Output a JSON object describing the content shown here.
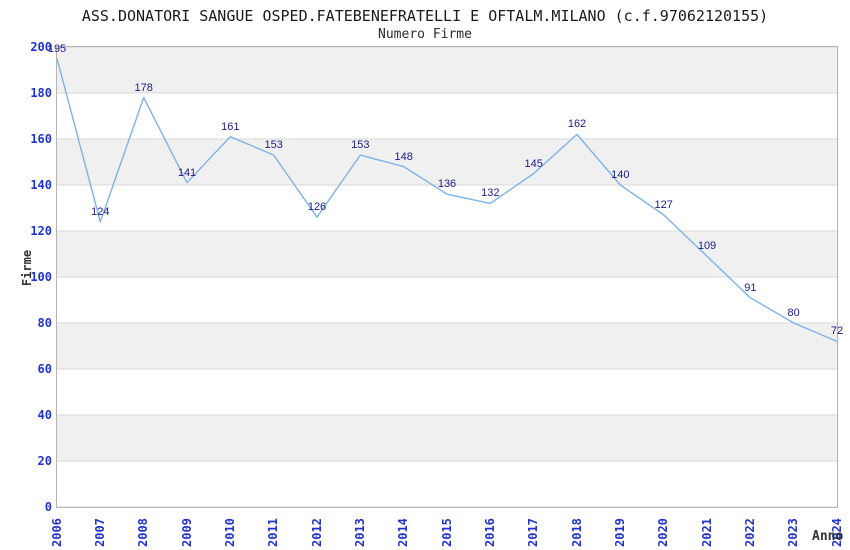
{
  "chart_data": {
    "type": "line",
    "title": "ASS.DONATORI SANGUE OSPED.FATEBENEFRATELLI E OFTALM.MILANO (c.f.97062120155)",
    "subtitle": "Numero Firme",
    "xlabel": "Anno",
    "ylabel": "Firme",
    "categories": [
      "2006",
      "2007",
      "2008",
      "2009",
      "2010",
      "2011",
      "2012",
      "2013",
      "2014",
      "2015",
      "2016",
      "2017",
      "2018",
      "2019",
      "2020",
      "2021",
      "2022",
      "2023",
      "2024"
    ],
    "series": [
      {
        "name": "Numero Firme",
        "values": [
          195,
          124,
          178,
          141,
          161,
          153,
          126,
          153,
          148,
          136,
          132,
          145,
          162,
          140,
          127,
          109,
          91,
          80,
          72
        ]
      }
    ],
    "data_labels_visible": true,
    "ylim": [
      0,
      200
    ],
    "yticks": [
      0,
      20,
      40,
      60,
      80,
      100,
      120,
      140,
      160,
      180,
      200
    ],
    "grid": true,
    "band_fill": "alternating-horizontal",
    "legend": "none",
    "x_tick_rotation": -90,
    "colors": {
      "line": "#7fb2e8",
      "tick_label": "#2233cc",
      "data_label": "#1a1a8c",
      "band": "#f0f0f0",
      "gridline": "#d9d9d9",
      "plot_border": "#b4b4b4",
      "title_text": "#1a1a1a",
      "axis_title_text": "#333333",
      "background": "#ffffff"
    }
  }
}
